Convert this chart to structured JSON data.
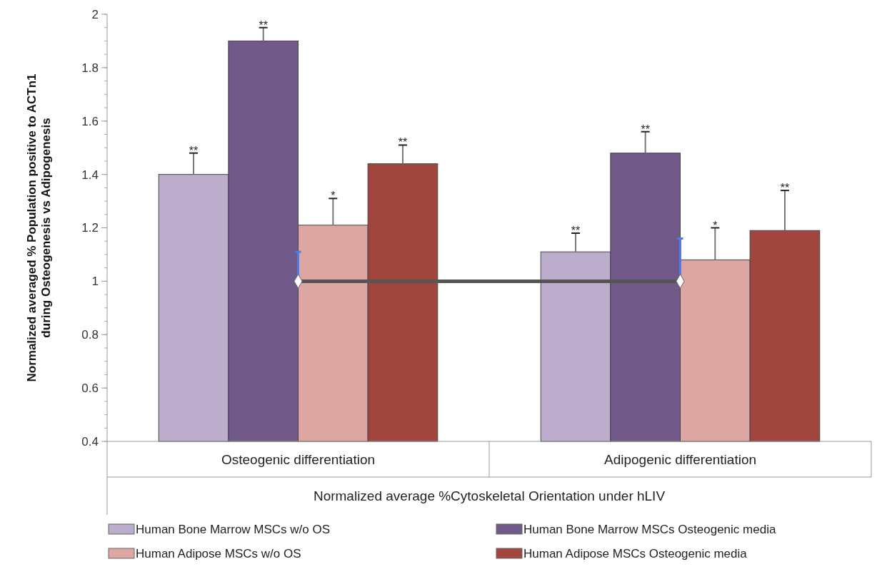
{
  "chart_data": {
    "type": "bar",
    "ylabel": "Normalized averaged % Population positive to ACTn1 during Osteogenesis vs Adipogenesis",
    "xlabel": "Normalized average %Cytoskeletal Orientation under hLIV",
    "categories": [
      "Osteogenic differentiation",
      "Adipogenic differentiation"
    ],
    "ylim": [
      0.4,
      2
    ],
    "yticks": [
      0.4,
      0.6,
      0.8,
      1,
      1.2,
      1.4,
      1.6,
      1.8,
      2
    ],
    "grid": false,
    "legend": "bottom",
    "series": [
      {
        "name": "Human Bone Marrow MSCs w/o OS",
        "color": "#bcadcc",
        "values": [
          1.4,
          1.11
        ],
        "errors": [
          [
            1.4,
            1.48
          ],
          [
            1.11,
            1.18
          ]
        ],
        "value_labels": [
          "**",
          "**"
        ]
      },
      {
        "name": "Human Bone Marrow MSCs Osteogenic media",
        "color": "#715a8a",
        "values": [
          1.9,
          1.48
        ],
        "errors": [
          [
            1.9,
            1.95
          ],
          [
            1.48,
            1.56
          ]
        ],
        "value_labels": [
          "**",
          "**"
        ]
      },
      {
        "name": "Human Adipose MSCs w/o OS",
        "color": "#dea6a2",
        "values": [
          1.21,
          1.08
        ],
        "errors": [
          [
            1.21,
            1.31
          ],
          [
            1.08,
            1.2
          ]
        ],
        "value_labels": [
          "*",
          "*"
        ]
      },
      {
        "name": "Human Adipose MSCs Osteogenic media",
        "color": "#a1463f",
        "values": [
          1.44,
          1.19
        ],
        "errors": [
          [
            1.44,
            1.51
          ],
          [
            1.19,
            1.34
          ]
        ],
        "value_labels": [
          "**",
          "**"
        ]
      },
      {
        "type": "line",
        "color": "#555555",
        "values": [
          1,
          1
        ],
        "errors": [
          [
            1,
            1.11
          ],
          [
            1,
            1.16
          ]
        ],
        "marker": "diamond",
        "line_style": "solid"
      }
    ]
  }
}
